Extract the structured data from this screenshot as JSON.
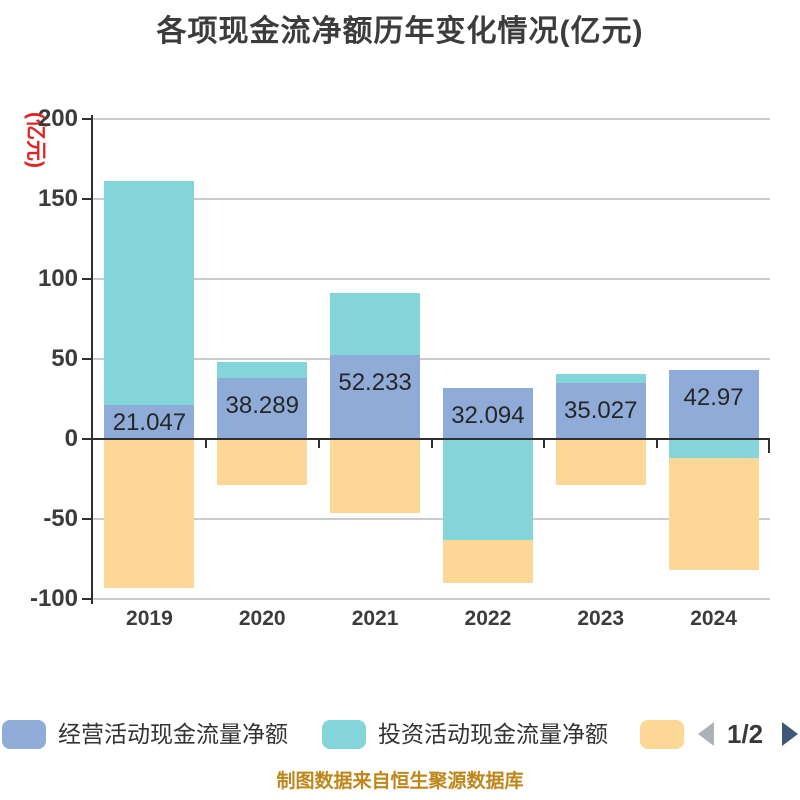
{
  "title": "各项现金流净额历年变化情况(亿元)",
  "y_axis_unit": "(亿元)",
  "caption": "制图数据来自恒生聚源数据库",
  "pagination": {
    "current": "1/2"
  },
  "legend": {
    "items": [
      {
        "label": "经营活动现金流量净额",
        "color": "#8FACD8"
      },
      {
        "label": "投资活动现金流量净额",
        "color": "#84D5DA"
      },
      {
        "label": "",
        "color": "#FDD795"
      }
    ]
  },
  "chart_data": {
    "type": "bar",
    "stacked": true,
    "title": "各项现金流净额历年变化情况(亿元)",
    "ylabel": "(亿元)",
    "ylim": [
      -100,
      200
    ],
    "yticks": [
      200,
      150,
      100,
      50,
      0,
      -50,
      -100
    ],
    "grid": true,
    "legend_position": "bottom",
    "categories": [
      "2019",
      "2020",
      "2021",
      "2022",
      "2023",
      "2024"
    ],
    "series": [
      {
        "name": "经营活动现金流量净额",
        "color": "#8FACD8",
        "values": [
          21.047,
          38.289,
          52.233,
          32.094,
          35.027,
          42.97
        ]
      },
      {
        "name": "投资活动现金流量净额",
        "color": "#84D5DA",
        "values": [
          140,
          10,
          39,
          -63,
          5.5,
          -12
        ]
      },
      {
        "name": "",
        "color": "#FDD795",
        "values": [
          -93,
          -29,
          -46,
          -27,
          -29,
          -70
        ]
      }
    ],
    "bar_labels": [
      "21.047",
      "38.289",
      "52.233",
      "32.094",
      "35.027",
      "42.97"
    ]
  }
}
